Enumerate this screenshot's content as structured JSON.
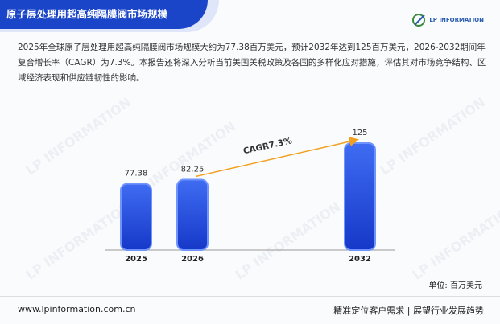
{
  "header": {
    "title": "原子层处理用超高纯隔膜阀市场规模",
    "logo": "LP INFORMATION"
  },
  "paragraph": "2025年全球原子层处理用超高纯隔膜阀市场规模大约为77.38百万美元，预计2032年达到125百万美元，2026-2032期间年复合增长率（CAGR）为7.3%。本报告还将深入分析当前美国关税政策及各国的多样化应对措施，评估其对市场竞争结构、区域经济表现和供应链韧性的影响。",
  "watermark": "LP INFORMATION",
  "chart_data": {
    "type": "bar",
    "categories": [
      "2025",
      "2026",
      "2032"
    ],
    "values": [
      77.38,
      82.25,
      125
    ],
    "color": "#1f4fe0",
    "annotation": "CAGR7.3%",
    "unit": "单位: 百万美元"
  },
  "footer": {
    "url": "www.lpinformation.com.cn",
    "slogan": "精准定位客户需求 | 展望行业发展趋势"
  }
}
